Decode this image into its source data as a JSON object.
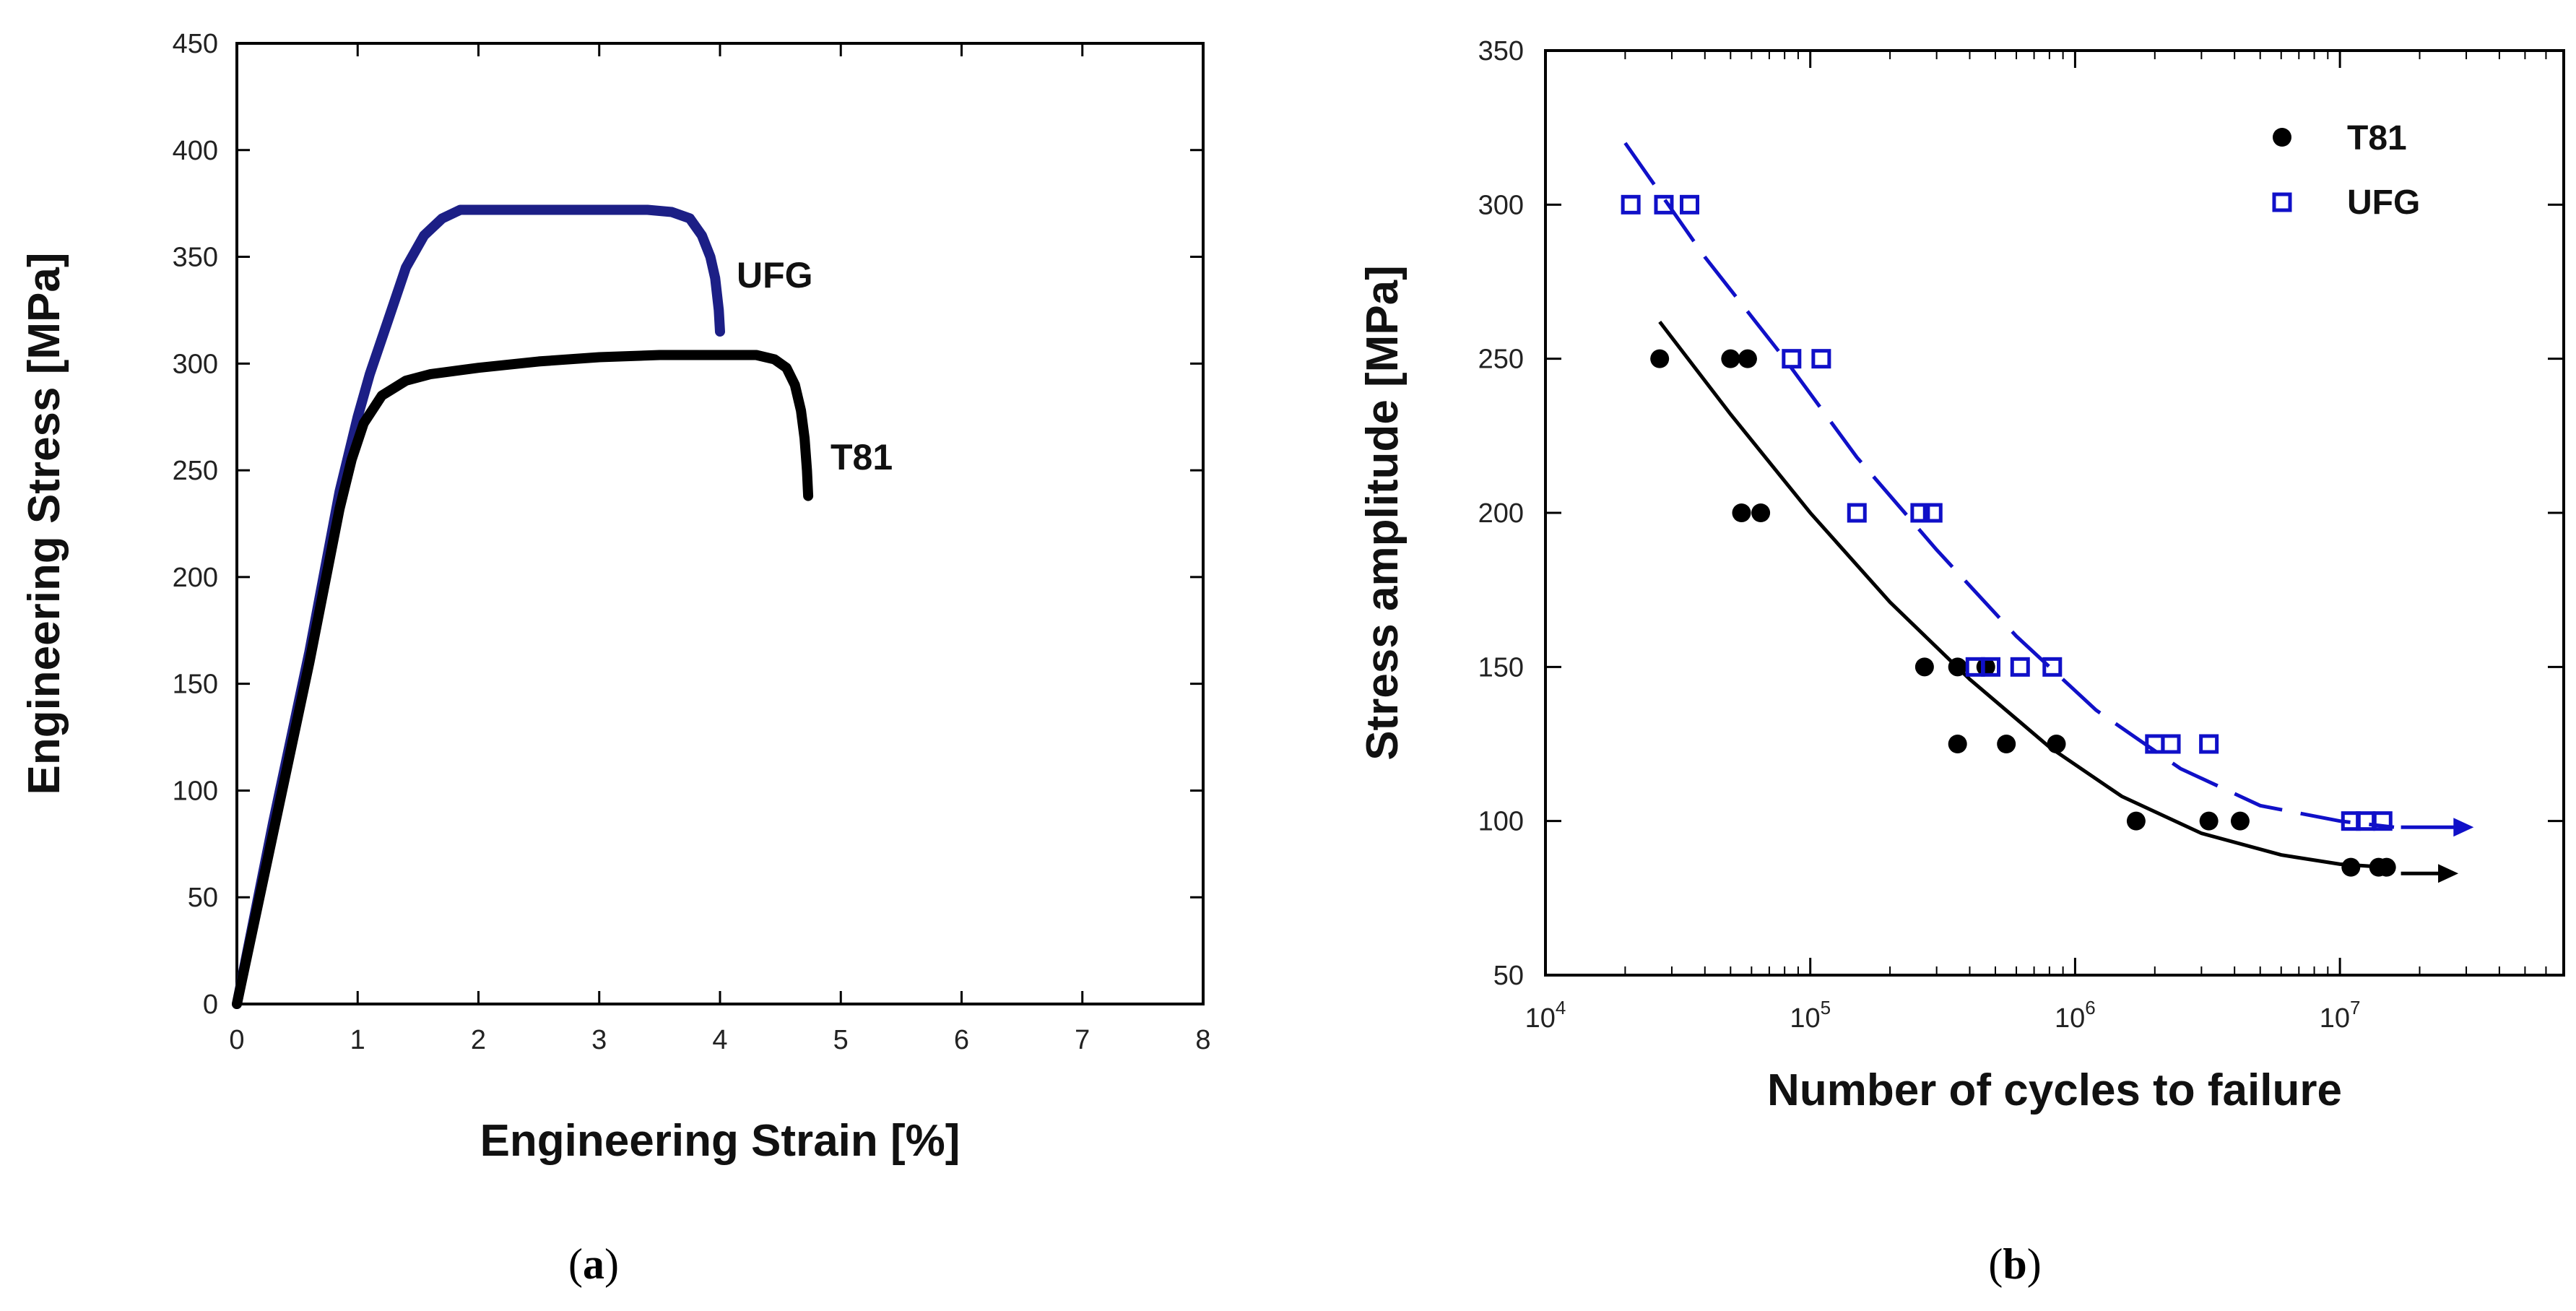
{
  "chart_data": [
    {
      "type": "line",
      "caption": {
        "open": "(",
        "letter": "a",
        "close": ")"
      },
      "xlabel": "Engineering Strain [%]",
      "ylabel": "Engineering Stress [MPa]",
      "xlim": [
        0,
        8
      ],
      "ylim": [
        0,
        450
      ],
      "xticks": [
        "0",
        "1",
        "2",
        "3",
        "4",
        "5",
        "6",
        "7",
        "8"
      ],
      "yticks": [
        "0",
        "50",
        "100",
        "150",
        "200",
        "250",
        "300",
        "350",
        "400",
        "450"
      ],
      "colors": {
        "UFG": "#1c1f86",
        "T81": "#000000"
      },
      "series": [
        {
          "name": "UFG",
          "x": [
            0,
            0.3,
            0.6,
            0.85,
            1.0,
            1.1,
            1.25,
            1.4,
            1.55,
            1.7,
            1.85,
            2.0,
            2.5,
            3.0,
            3.4,
            3.6,
            3.75,
            3.85,
            3.92,
            3.96,
            3.99,
            4.0
          ],
          "y": [
            0,
            85,
            165,
            240,
            275,
            295,
            320,
            345,
            360,
            368,
            372,
            372,
            372,
            372,
            372,
            371,
            368,
            360,
            350,
            340,
            325,
            315
          ]
        },
        {
          "name": "T81",
          "x": [
            0,
            0.3,
            0.6,
            0.85,
            0.95,
            1.05,
            1.2,
            1.4,
            1.6,
            2.0,
            2.5,
            3.0,
            3.5,
            4.0,
            4.3,
            4.45,
            4.55,
            4.62,
            4.67,
            4.7,
            4.72,
            4.73
          ],
          "y": [
            0,
            80,
            160,
            232,
            255,
            272,
            285,
            292,
            295,
            298,
            301,
            303,
            304,
            304,
            304,
            302,
            298,
            290,
            278,
            265,
            250,
            238
          ]
        }
      ]
    },
    {
      "type": "scatter",
      "caption": {
        "open": "(",
        "letter": "b",
        "close": ")"
      },
      "xlabel": "Number of cycles to failure",
      "ylabel": "Stress amplitude [MPa]",
      "xscale": "log",
      "xlim": [
        10000,
        70000000
      ],
      "ylim": [
        50,
        350
      ],
      "xticks": [
        {
          "base": "10",
          "exp": "4",
          "value": 10000
        },
        {
          "base": "10",
          "exp": "5",
          "value": 100000
        },
        {
          "base": "10",
          "exp": "6",
          "value": 1000000
        },
        {
          "base": "10",
          "exp": "7",
          "value": 10000000
        }
      ],
      "yticks": [
        "50",
        "100",
        "150",
        "200",
        "250",
        "300",
        "350"
      ],
      "legend": {
        "position": "top-right",
        "entries": [
          "T81",
          "UFG"
        ]
      },
      "colors": {
        "T81": "#000000",
        "UFG": "#1010c8"
      },
      "series": [
        {
          "name": "T81",
          "marker": "filled-circle",
          "points": [
            {
              "x": 27000,
              "y": 250
            },
            {
              "x": 50000,
              "y": 250
            },
            {
              "x": 58000,
              "y": 250
            },
            {
              "x": 55000,
              "y": 200
            },
            {
              "x": 65000,
              "y": 200
            },
            {
              "x": 270000,
              "y": 150
            },
            {
              "x": 360000,
              "y": 150
            },
            {
              "x": 460000,
              "y": 150
            },
            {
              "x": 360000,
              "y": 125
            },
            {
              "x": 550000,
              "y": 125
            },
            {
              "x": 850000,
              "y": 125
            },
            {
              "x": 1700000,
              "y": 100
            },
            {
              "x": 3200000,
              "y": 100
            },
            {
              "x": 4200000,
              "y": 100
            },
            {
              "x": 11000000,
              "y": 85
            },
            {
              "x": 14000000,
              "y": 85
            },
            {
              "x": 15000000,
              "y": 85
            }
          ],
          "fit": {
            "style": "solid",
            "x": [
              27000,
              50000,
              100000,
              200000,
              400000,
              800000,
              1500000,
              3000000,
              6000000,
              10000000,
              15000000
            ],
            "y": [
              262,
              232,
              200,
              171,
              146,
              124,
              108,
              96,
              89,
              86,
              85
            ]
          },
          "runout_arrow": {
            "x": [
              17000000,
              28000000
            ],
            "y": 83
          }
        },
        {
          "name": "UFG",
          "marker": "open-square",
          "points": [
            {
              "x": 21000,
              "y": 300
            },
            {
              "x": 28000,
              "y": 300
            },
            {
              "x": 35000,
              "y": 300
            },
            {
              "x": 85000,
              "y": 250
            },
            {
              "x": 110000,
              "y": 250
            },
            {
              "x": 150000,
              "y": 200
            },
            {
              "x": 260000,
              "y": 200
            },
            {
              "x": 290000,
              "y": 200
            },
            {
              "x": 420000,
              "y": 150
            },
            {
              "x": 480000,
              "y": 150
            },
            {
              "x": 620000,
              "y": 150
            },
            {
              "x": 820000,
              "y": 150
            },
            {
              "x": 2000000,
              "y": 125
            },
            {
              "x": 2300000,
              "y": 125
            },
            {
              "x": 3200000,
              "y": 125
            },
            {
              "x": 11000000,
              "y": 100
            },
            {
              "x": 12500000,
              "y": 100
            },
            {
              "x": 14500000,
              "y": 100
            }
          ],
          "fit": {
            "style": "dashed",
            "x": [
              20000,
              40000,
              80000,
              150000,
              300000,
              600000,
              1200000,
              2500000,
              5000000,
              10000000,
              16000000
            ],
            "y": [
              320,
              283,
              250,
              218,
              188,
              160,
              136,
              117,
              105,
              100,
              98
            ]
          },
          "runout_arrow": {
            "x": [
              17000000,
              32000000
            ],
            "y": 98
          }
        }
      ]
    }
  ]
}
